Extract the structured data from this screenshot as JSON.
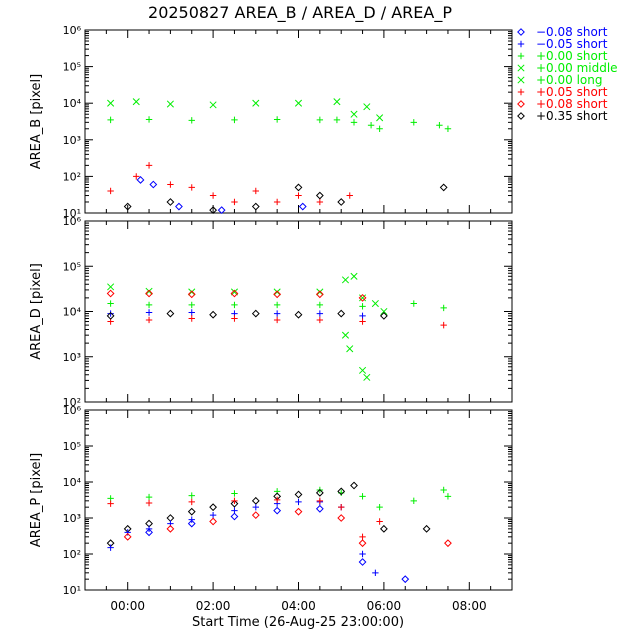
{
  "chart_data": {
    "type": "scatter",
    "title": "20250827 AREA_B / AREA_D / AREA_P",
    "xlabel": "Start Time (26-Aug-25 23:00:00)",
    "x_ticks": [
      "00:00",
      "02:00",
      "04:00",
      "06:00",
      "08:00"
    ],
    "xlim_hours": [
      -1.0,
      9.0
    ],
    "yscale": "log",
    "legend_position": "right-top",
    "legend": [
      {
        "label": "−0.08 short",
        "color": "#0000ff",
        "marker": "diamond"
      },
      {
        "label": "−0.05 short",
        "color": "#0000ff",
        "marker": "plus"
      },
      {
        "label": "+0.00 short",
        "color": "#00ee00",
        "marker": "plus"
      },
      {
        "label": "+0.00 middle",
        "color": "#00ee00",
        "marker": "cross"
      },
      {
        "label": "+0.00 long",
        "color": "#00ee00",
        "marker": "cross"
      },
      {
        "label": "+0.05 short",
        "color": "#ff0000",
        "marker": "plus"
      },
      {
        "label": "+0.08 short",
        "color": "#ff0000",
        "marker": "diamond"
      },
      {
        "label": "+0.35 short",
        "color": "#000000",
        "marker": "diamond"
      }
    ],
    "panels": [
      {
        "ylabel": "AREA_B [pixel]",
        "ylim": [
          10,
          1000000
        ],
        "y_ticks": [
          "10¹",
          "10²",
          "10³",
          "10⁴",
          "10⁵",
          "10⁶"
        ],
        "series": [
          {
            "legend": 3,
            "x": [
              -0.4,
              0.2,
              1.0,
              2.0,
              3.0,
              4.0,
              4.9,
              5.3,
              5.6,
              5.9
            ],
            "y": [
              10000,
              11000,
              9500,
              9000,
              10000,
              10000,
              11000,
              5000,
              8000,
              4000
            ]
          },
          {
            "legend": 2,
            "x": [
              -0.4,
              0.5,
              1.5,
              2.5,
              3.5,
              4.5,
              4.9,
              5.3,
              5.7,
              5.9,
              6.7,
              7.3,
              7.5
            ],
            "y": [
              3500,
              3600,
              3400,
              3500,
              3600,
              3500,
              3500,
              3000,
              2500,
              2000,
              3000,
              2500,
              2000
            ]
          },
          {
            "legend": 5,
            "x": [
              -0.4,
              0.2,
              0.5,
              1.0,
              1.5,
              2.0,
              2.5,
              3.0,
              3.5,
              4.0,
              4.5,
              5.2
            ],
            "y": [
              40,
              100,
              200,
              60,
              50,
              30,
              20,
              40,
              20,
              30,
              20,
              30
            ]
          },
          {
            "legend": 0,
            "x": [
              0.3,
              0.6,
              1.2,
              2.2,
              4.1
            ],
            "y": [
              80,
              60,
              15,
              12,
              15
            ]
          },
          {
            "legend": 7,
            "x": [
              0.0,
              1.0,
              2.0,
              3.0,
              4.0,
              4.5,
              5.0,
              7.4
            ],
            "y": [
              15,
              20,
              12,
              15,
              50,
              30,
              20,
              50
            ]
          }
        ]
      },
      {
        "ylabel": "AREA_D [pixel]",
        "ylim": [
          100,
          1000000
        ],
        "y_ticks": [
          "10²",
          "10³",
          "10⁴",
          "10⁵",
          "10⁶"
        ],
        "series": [
          {
            "legend": 3,
            "x": [
              -0.4,
              0.5,
              1.5,
              2.5,
              3.5,
              4.5,
              5.1,
              5.3,
              5.5,
              5.8,
              6.0
            ],
            "y": [
              35000,
              28000,
              27000,
              27000,
              27000,
              27000,
              50000,
              60000,
              20000,
              15000,
              10000
            ]
          },
          {
            "legend": 2,
            "x": [
              -0.4,
              0.5,
              1.5,
              2.5,
              3.5,
              4.5,
              5.5,
              6.7,
              7.4
            ],
            "y": [
              15000,
              14000,
              14000,
              14000,
              14000,
              14000,
              13000,
              15000,
              12000
            ]
          },
          {
            "legend": 4,
            "x": [
              5.1,
              5.2,
              5.5,
              5.6
            ],
            "y": [
              3000,
              1500,
              500,
              350
            ]
          },
          {
            "legend": 6,
            "x": [
              -0.4,
              0.5,
              1.5,
              2.5,
              3.5,
              4.5,
              5.5
            ],
            "y": [
              25000,
              25000,
              24000,
              25000,
              24000,
              24000,
              20000
            ]
          },
          {
            "legend": 1,
            "x": [
              -0.4,
              0.5,
              1.5,
              2.5,
              3.5,
              4.5,
              5.5
            ],
            "y": [
              9000,
              9500,
              9500,
              9000,
              9000,
              9000,
              8000
            ]
          },
          {
            "legend": 5,
            "x": [
              -0.4,
              0.5,
              1.5,
              2.5,
              3.5,
              4.5,
              5.5,
              7.4
            ],
            "y": [
              6000,
              6500,
              7000,
              7000,
              6500,
              6500,
              6000,
              5000
            ]
          },
          {
            "legend": 7,
            "x": [
              -0.4,
              1.0,
              2.0,
              3.0,
              4.0,
              5.0,
              6.0
            ],
            "y": [
              8000,
              9000,
              8500,
              9000,
              8500,
              9000,
              8000
            ]
          }
        ]
      },
      {
        "ylabel": "AREA_P [pixel]",
        "ylim": [
          10,
          1000000
        ],
        "y_ticks": [
          "10¹",
          "10²",
          "10³",
          "10⁴",
          "10⁵",
          "10⁶"
        ],
        "series": [
          {
            "legend": 2,
            "x": [
              -0.4,
              0.5,
              1.5,
              2.5,
              3.5,
              4.5,
              5.0,
              5.5,
              5.9,
              6.7,
              7.4,
              7.5
            ],
            "y": [
              3500,
              3800,
              4200,
              4800,
              5500,
              6000,
              5000,
              4000,
              2000,
              3000,
              6000,
              4000
            ]
          },
          {
            "legend": 7,
            "x": [
              -0.4,
              0.0,
              0.5,
              1.0,
              1.5,
              2.0,
              2.5,
              3.0,
              3.5,
              4.0,
              4.5,
              5.0,
              5.3,
              6.0,
              7.0
            ],
            "y": [
              200,
              500,
              700,
              1000,
              1500,
              2000,
              2500,
              3000,
              4000,
              4500,
              5000,
              5500,
              8000,
              500,
              500
            ]
          },
          {
            "legend": 1,
            "x": [
              -0.4,
              0.0,
              0.5,
              1.0,
              1.5,
              2.0,
              2.5,
              3.0,
              3.5,
              4.0,
              4.5,
              5.0,
              5.5,
              5.8
            ],
            "y": [
              150,
              400,
              500,
              700,
              900,
              1200,
              1600,
              2000,
              2500,
              2800,
              2800,
              2000,
              100,
              30
            ]
          },
          {
            "legend": 5,
            "x": [
              -0.4,
              0.5,
              1.5,
              2.5,
              3.5,
              4.5,
              5.0,
              5.5,
              5.9
            ],
            "y": [
              2500,
              2600,
              2800,
              3000,
              3200,
              3000,
              2000,
              300,
              800
            ]
          },
          {
            "legend": 6,
            "x": [
              0.0,
              1.0,
              2.0,
              3.0,
              4.0,
              5.0,
              5.5,
              7.5
            ],
            "y": [
              300,
              500,
              800,
              1200,
              1500,
              1000,
              200,
              200
            ]
          },
          {
            "legend": 0,
            "x": [
              0.5,
              1.5,
              2.5,
              3.5,
              4.5,
              5.5,
              6.5
            ],
            "y": [
              400,
              700,
              1100,
              1600,
              1800,
              60,
              20
            ]
          }
        ]
      }
    ]
  }
}
